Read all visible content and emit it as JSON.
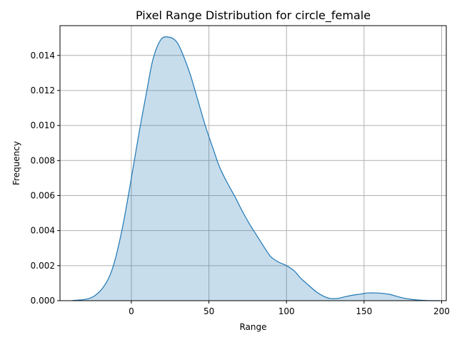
{
  "chart_data": {
    "type": "area",
    "title": "Pixel Range Distribution for circle_female",
    "xlabel": "Range",
    "ylabel": "Frequency",
    "xlim": [
      -46,
      203
    ],
    "ylim": [
      0,
      0.0157
    ],
    "xticks": [
      0,
      50,
      100,
      150,
      200
    ],
    "yticks": [
      0.0,
      0.002,
      0.004,
      0.006,
      0.008,
      0.01,
      0.012,
      0.014
    ],
    "xtick_labels": [
      "0",
      "50",
      "100",
      "150",
      "200"
    ],
    "ytick_labels": [
      "0.000",
      "0.002",
      "0.004",
      "0.006",
      "0.008",
      "0.010",
      "0.012",
      "0.014"
    ],
    "grid": true,
    "line_color": "#1f77b4",
    "fill_color": "#1f77b4",
    "fill_opacity": 0.25,
    "series": [
      {
        "x": [
          -38,
          -33,
          -28,
          -24,
          -19,
          -14,
          -10,
          -5,
          0,
          5,
          10,
          14,
          19,
          24,
          29,
          33,
          38,
          43,
          48,
          53,
          57,
          62,
          67,
          71,
          76,
          81,
          86,
          90,
          95,
          100,
          105,
          109,
          114,
          119,
          124,
          128,
          133,
          138,
          143,
          148,
          152,
          157,
          162,
          167,
          171,
          176,
          181,
          186,
          190,
          195,
          199
        ],
        "y": [
          1e-05,
          4e-05,
          0.00011,
          0.00026,
          0.00066,
          0.00141,
          0.0025,
          0.0045,
          0.007,
          0.0096,
          0.012,
          0.0138,
          0.0149,
          0.01505,
          0.0148,
          0.0141,
          0.0129,
          0.0114,
          0.0099,
          0.0086,
          0.0076,
          0.0067,
          0.0059,
          0.0052,
          0.0044,
          0.0037,
          0.003,
          0.0025,
          0.0022,
          0.002,
          0.0017,
          0.0013,
          0.0009,
          0.00052,
          0.00025,
          0.00013,
          0.00013,
          0.00023,
          0.00032,
          0.00038,
          0.00044,
          0.00044,
          0.00042,
          0.00035,
          0.00025,
          0.00014,
          7e-05,
          3e-05,
          1e-05,
          0.0,
          0.0
        ]
      }
    ]
  }
}
